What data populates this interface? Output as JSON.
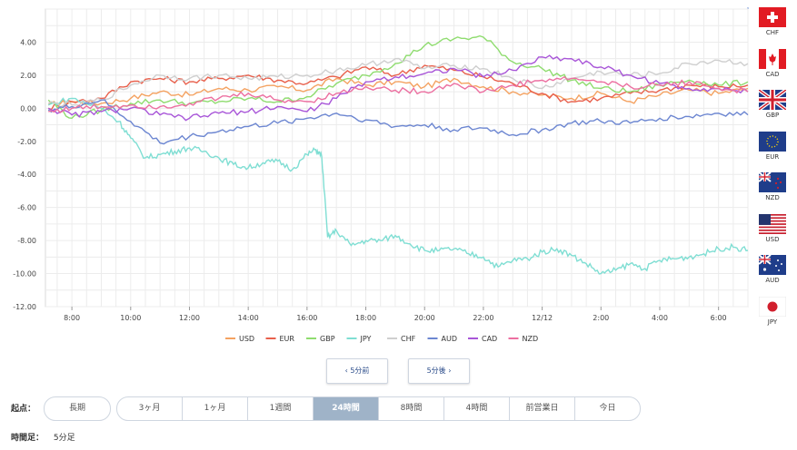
{
  "chart_data": {
    "type": "line",
    "title": "",
    "xlabel": "",
    "ylabel": "",
    "ylim": [
      -12,
      6
    ],
    "yticks": [
      "4.00",
      "2.00",
      "0.00",
      "-2.00",
      "-4.00",
      "-6.00",
      "-8.00",
      "-10.00",
      "-12.00"
    ],
    "ytick_values": [
      4,
      2,
      0,
      -2,
      -4,
      -6,
      -8,
      -10,
      -12
    ],
    "xticks": [
      "8:00",
      "10:00",
      "12:00",
      "14:00",
      "16:00",
      "18:00",
      "20:00",
      "22:00",
      "12/12",
      "2:00",
      "4:00",
      "6:00"
    ],
    "xtick_hours": [
      8,
      10,
      12,
      14,
      16,
      18,
      20,
      22,
      24,
      26,
      28,
      30
    ],
    "xlim_hours": [
      7.1,
      31.0
    ],
    "grid": true,
    "legend_position": "bottom",
    "series": [
      {
        "name": "USD",
        "color": "#f4a261",
        "x": [
          7.2,
          8,
          9,
          10,
          11,
          12,
          13,
          14,
          15,
          16,
          17,
          18,
          19,
          20,
          21,
          22,
          23,
          24,
          25,
          26,
          27,
          28,
          29,
          30,
          31
        ],
        "values": [
          0.2,
          0.4,
          0.3,
          0.6,
          1.0,
          0.8,
          1.2,
          1.1,
          1.3,
          1.1,
          1.8,
          1.4,
          1.6,
          1.3,
          1.8,
          1.3,
          1.0,
          0.8,
          0.6,
          0.9,
          0.4,
          0.8,
          1.1,
          0.9,
          1.2
        ]
      },
      {
        "name": "EUR",
        "color": "#e8604c",
        "x": [
          7.2,
          8,
          9,
          10,
          11,
          12,
          13,
          14,
          15,
          16,
          17,
          18,
          19,
          20,
          21,
          22,
          23,
          24,
          25,
          26,
          27,
          28,
          29,
          30,
          31
        ],
        "values": [
          0.0,
          0.4,
          0.6,
          1.6,
          1.8,
          1.6,
          1.8,
          2.0,
          1.7,
          1.5,
          1.9,
          2.5,
          2.0,
          2.6,
          2.3,
          1.9,
          1.5,
          0.9,
          0.4,
          0.6,
          0.9,
          1.1,
          1.4,
          1.3,
          1.4
        ]
      },
      {
        "name": "GBP",
        "color": "#8fdc6f",
        "x": [
          7.2,
          8,
          9,
          10,
          11,
          12,
          13,
          14,
          15,
          16,
          17,
          18,
          19,
          20,
          21,
          22,
          23,
          24,
          25,
          26,
          27,
          28,
          29,
          30,
          31
        ],
        "values": [
          0.5,
          -0.6,
          -0.1,
          0.3,
          0.5,
          0.3,
          0.4,
          0.6,
          0.4,
          0.7,
          1.5,
          2.0,
          2.7,
          3.8,
          4.2,
          4.3,
          2.8,
          2.4,
          1.7,
          1.2,
          1.0,
          1.4,
          1.7,
          1.4,
          1.6
        ]
      },
      {
        "name": "JPY",
        "color": "#7fded3",
        "x": [
          7.2,
          8,
          9,
          9.6,
          10,
          10.5,
          11,
          11.5,
          12,
          12.5,
          13,
          13.5,
          14,
          14.5,
          15,
          15.5,
          16,
          16.3,
          16.5,
          16.7,
          17,
          17.5,
          18,
          18.5,
          19,
          19.5,
          20,
          20.5,
          21,
          21.5,
          22,
          22.5,
          23,
          23.5,
          24,
          24.5,
          25,
          25.5,
          26,
          26.5,
          27,
          27.5,
          28,
          28.5,
          29,
          29.5,
          30,
          30.5,
          31
        ],
        "values": [
          0.2,
          0.6,
          0.0,
          -0.8,
          -1.8,
          -3.0,
          -2.8,
          -2.6,
          -2.4,
          -2.6,
          -3.0,
          -3.4,
          -3.6,
          -3.3,
          -3.2,
          -3.7,
          -2.8,
          -2.5,
          -2.9,
          -7.8,
          -7.4,
          -8.3,
          -8.0,
          -8.0,
          -7.7,
          -8.2,
          -8.6,
          -8.6,
          -8.5,
          -8.8,
          -9.0,
          -9.6,
          -9.2,
          -9.1,
          -8.7,
          -8.5,
          -8.9,
          -9.4,
          -10.0,
          -9.8,
          -9.4,
          -9.7,
          -9.2,
          -9.1,
          -9.0,
          -8.8,
          -8.5,
          -8.4,
          -8.6
        ]
      },
      {
        "name": "CHF",
        "color": "#cfcfcf",
        "x": [
          7.2,
          8,
          9,
          10,
          11,
          12,
          13,
          14,
          15,
          16,
          17,
          18,
          19,
          20,
          21,
          22,
          23,
          24,
          25,
          26,
          27,
          28,
          29,
          30,
          31
        ],
        "values": [
          0.3,
          0.2,
          0.5,
          1.4,
          2.0,
          1.8,
          2.0,
          1.8,
          1.9,
          2.0,
          2.3,
          2.6,
          3.0,
          2.4,
          2.6,
          2.4,
          1.8,
          1.2,
          1.8,
          2.2,
          2.0,
          2.1,
          2.7,
          2.9,
          2.7
        ]
      },
      {
        "name": "AUD",
        "color": "#6c86d1",
        "x": [
          7.2,
          8,
          9,
          10,
          11,
          12,
          13,
          14,
          15,
          16,
          17,
          18,
          19,
          20,
          21,
          22,
          23,
          24,
          25,
          26,
          27,
          28,
          29,
          30,
          31
        ],
        "values": [
          -0.1,
          0.1,
          0.5,
          -0.8,
          -2.1,
          -1.7,
          -1.4,
          -1.1,
          -0.9,
          -0.6,
          -0.3,
          -0.7,
          -1.1,
          -1.0,
          -1.3,
          -1.2,
          -1.6,
          -1.3,
          -0.9,
          -0.8,
          -0.9,
          -0.6,
          -0.5,
          -0.3,
          -0.4
        ]
      },
      {
        "name": "CAD",
        "color": "#a855d8",
        "x": [
          7.2,
          8,
          9,
          10,
          11,
          12,
          13,
          14,
          15,
          16,
          17,
          18,
          19,
          20,
          21,
          22,
          23,
          24,
          25,
          26,
          27,
          28,
          29,
          30,
          31
        ],
        "values": [
          0.0,
          -0.4,
          -0.2,
          0.0,
          -0.4,
          -0.6,
          -0.3,
          -0.2,
          0.1,
          -0.2,
          0.6,
          1.6,
          1.9,
          2.1,
          2.4,
          1.9,
          2.3,
          3.1,
          3.0,
          2.5,
          2.0,
          1.5,
          1.2,
          1.2,
          1.0
        ]
      },
      {
        "name": "NZD",
        "color": "#ec6fa0",
        "x": [
          7.2,
          8,
          9,
          10,
          11,
          12,
          13,
          14,
          15,
          16,
          17,
          18,
          19,
          20,
          21,
          22,
          23,
          24,
          25,
          26,
          27,
          28,
          29,
          30,
          31
        ],
        "values": [
          -0.2,
          0.0,
          0.1,
          0.2,
          0.1,
          0.3,
          0.6,
          0.9,
          0.5,
          0.4,
          0.9,
          1.3,
          1.1,
          1.0,
          1.5,
          1.0,
          1.4,
          1.7,
          1.8,
          1.6,
          1.3,
          1.4,
          1.6,
          1.2,
          1.0
        ]
      }
    ]
  },
  "flags": [
    {
      "code": "CHF",
      "icon": "switzerland-flag"
    },
    {
      "code": "CAD",
      "icon": "canada-flag"
    },
    {
      "code": "GBP",
      "icon": "uk-flag"
    },
    {
      "code": "EUR",
      "icon": "eu-flag"
    },
    {
      "code": "NZD",
      "icon": "new-zealand-flag"
    },
    {
      "code": "USD",
      "icon": "usa-flag"
    },
    {
      "code": "AUD",
      "icon": "australia-flag"
    },
    {
      "code": "JPY",
      "icon": "japan-flag"
    }
  ],
  "nav": {
    "prev_label": "‹ 5分前",
    "next_label": "5分後 ›"
  },
  "range": {
    "label": "起点：",
    "long_label": "長期",
    "options": [
      "3ヶ月",
      "1ヶ月",
      "1週間",
      "24時間",
      "8時間",
      "4時間",
      "前営業日",
      "今日"
    ],
    "selected": "24時間"
  },
  "interval": {
    "label": "時間足：",
    "value": "5分足"
  }
}
